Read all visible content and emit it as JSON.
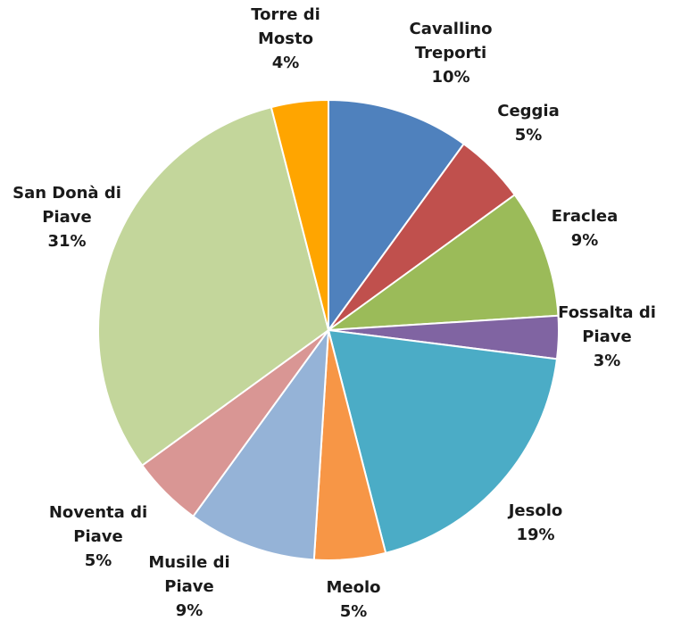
{
  "chart_data": {
    "type": "pie",
    "title": "",
    "legend": "none",
    "slices": [
      {
        "name": "Cavallino Treporti",
        "label_lines": [
          "Cavallino",
          "Treporti",
          "10%"
        ],
        "value": 10,
        "color": "#4f81bd"
      },
      {
        "name": "Ceggia",
        "label_lines": [
          "Ceggia",
          "5%"
        ],
        "value": 5,
        "color": "#c0504d"
      },
      {
        "name": "Eraclea",
        "label_lines": [
          "Eraclea",
          "9%"
        ],
        "value": 9,
        "color": "#9bbb59"
      },
      {
        "name": "Fossalta di Piave",
        "label_lines": [
          "Fossalta di",
          "Piave",
          "3%"
        ],
        "value": 3,
        "color": "#8064a2"
      },
      {
        "name": "Jesolo",
        "label_lines": [
          "Jesolo",
          "19%"
        ],
        "value": 19,
        "color": "#4bacc6"
      },
      {
        "name": "Meolo",
        "label_lines": [
          "Meolo",
          "5%"
        ],
        "value": 5,
        "color": "#f79646"
      },
      {
        "name": "Musile di Piave",
        "label_lines": [
          "Musile di",
          "Piave",
          "9%"
        ],
        "value": 9,
        "color": "#95b3d7"
      },
      {
        "name": "Noventa di Piave",
        "label_lines": [
          "Noventa di",
          "Piave",
          "5%"
        ],
        "value": 5,
        "color": "#d99694"
      },
      {
        "name": "San Donà di Piave",
        "label_lines": [
          "San Donà di",
          "Piave",
          "31%"
        ],
        "value": 31,
        "color": "#c3d69b"
      },
      {
        "name": "Torre di Mosto",
        "label_lines": [
          "Torre di",
          "Mosto",
          "4%"
        ],
        "value": 4,
        "color": "#ffa500"
      }
    ]
  }
}
